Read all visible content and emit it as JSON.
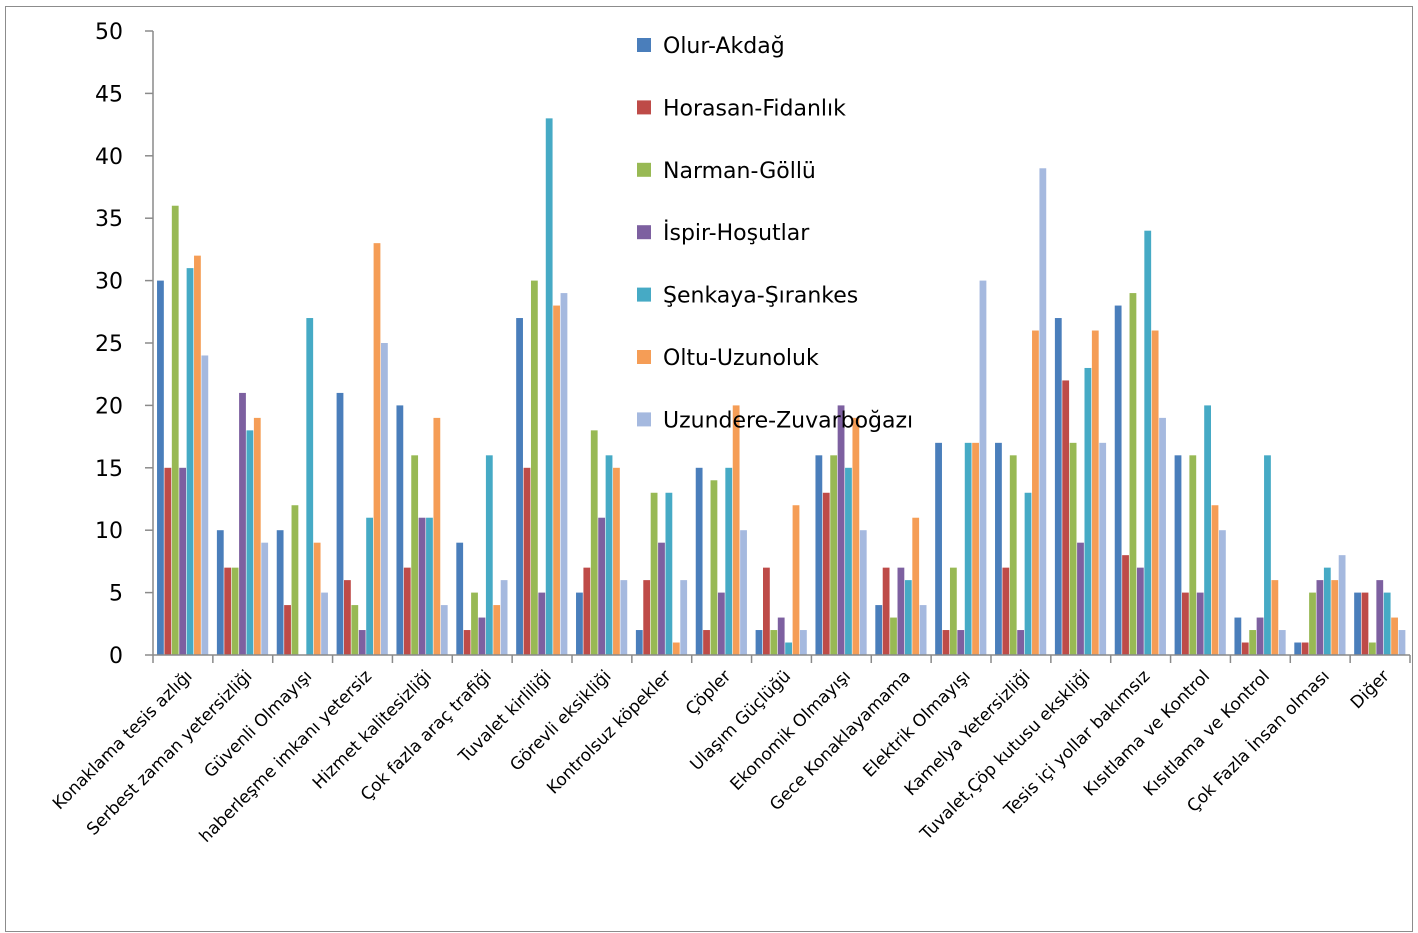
{
  "chart_data": {
    "type": "bar",
    "title": "",
    "xlabel": "",
    "ylabel": "",
    "ylim": [
      0,
      50
    ],
    "yticks": [
      0,
      5,
      10,
      15,
      20,
      25,
      30,
      35,
      40,
      45,
      50
    ],
    "grid": false,
    "legend_position": "top-center",
    "categories": [
      "Konaklama tesis azlığı",
      "Serbest zaman yetersizliği",
      "Güvenli Olmayışı",
      "haberleşme imkanı yetersiz",
      "Hizmet kalitesizliği",
      "Çok fazla araç trafiği",
      "Tuvalet kirliliği",
      "Görevli eksikliği",
      "Kontrolsuz köpekler",
      "Çöpler",
      "Ulaşım Güçlüğü",
      "Ekonomik Olmayışı",
      "Gece Konaklayamama",
      "Elektrik Olmayışı",
      "Kamelya Yetersizliği",
      "Tuvalet,Çöp kutusu ekskliği",
      "Tesis içi yollar bakımsız",
      "Kısıtlama ve Kontrol",
      "Kısıtlama ve Kontrol",
      "Çok Fazla İnsan olması",
      "Diğer"
    ],
    "series": [
      {
        "name": "Olur-Akdağ",
        "color": "#4a7ebb",
        "values": [
          30,
          10,
          10,
          21,
          20,
          9,
          27,
          5,
          2,
          15,
          2,
          16,
          4,
          17,
          17,
          27,
          28,
          16,
          3,
          1,
          5
        ]
      },
      {
        "name": "Horasan-Fidanlık",
        "color": "#be4b48",
        "values": [
          15,
          7,
          4,
          6,
          7,
          2,
          15,
          7,
          6,
          2,
          7,
          13,
          7,
          2,
          7,
          22,
          8,
          5,
          1,
          1,
          5
        ]
      },
      {
        "name": "Narman-Göllü",
        "color": "#98b954",
        "values": [
          36,
          7,
          12,
          4,
          16,
          5,
          30,
          18,
          13,
          14,
          2,
          16,
          3,
          7,
          16,
          17,
          29,
          16,
          2,
          5,
          1
        ]
      },
      {
        "name": "İspir-Hoşutlar",
        "color": "#7d60a0",
        "values": [
          15,
          21,
          0,
          2,
          11,
          3,
          5,
          11,
          9,
          5,
          3,
          20,
          7,
          2,
          2,
          9,
          7,
          5,
          3,
          6,
          6
        ]
      },
      {
        "name": "Şenkaya-Şırankes",
        "color": "#46aac5",
        "values": [
          31,
          18,
          27,
          11,
          11,
          16,
          43,
          16,
          13,
          15,
          1,
          15,
          6,
          17,
          13,
          23,
          34,
          20,
          16,
          7,
          5
        ]
      },
      {
        "name": "Oltu-Uzunoluk",
        "color": "#f59d56",
        "values": [
          32,
          19,
          9,
          33,
          19,
          4,
          28,
          15,
          1,
          20,
          12,
          19,
          11,
          17,
          26,
          26,
          26,
          12,
          6,
          6,
          3
        ]
      },
      {
        "name": "Uzundere-Zuvarboğazı",
        "color": "#a5b9df",
        "values": [
          24,
          9,
          5,
          25,
          4,
          6,
          29,
          6,
          6,
          10,
          2,
          10,
          4,
          30,
          39,
          17,
          19,
          10,
          2,
          8,
          2
        ]
      }
    ]
  }
}
